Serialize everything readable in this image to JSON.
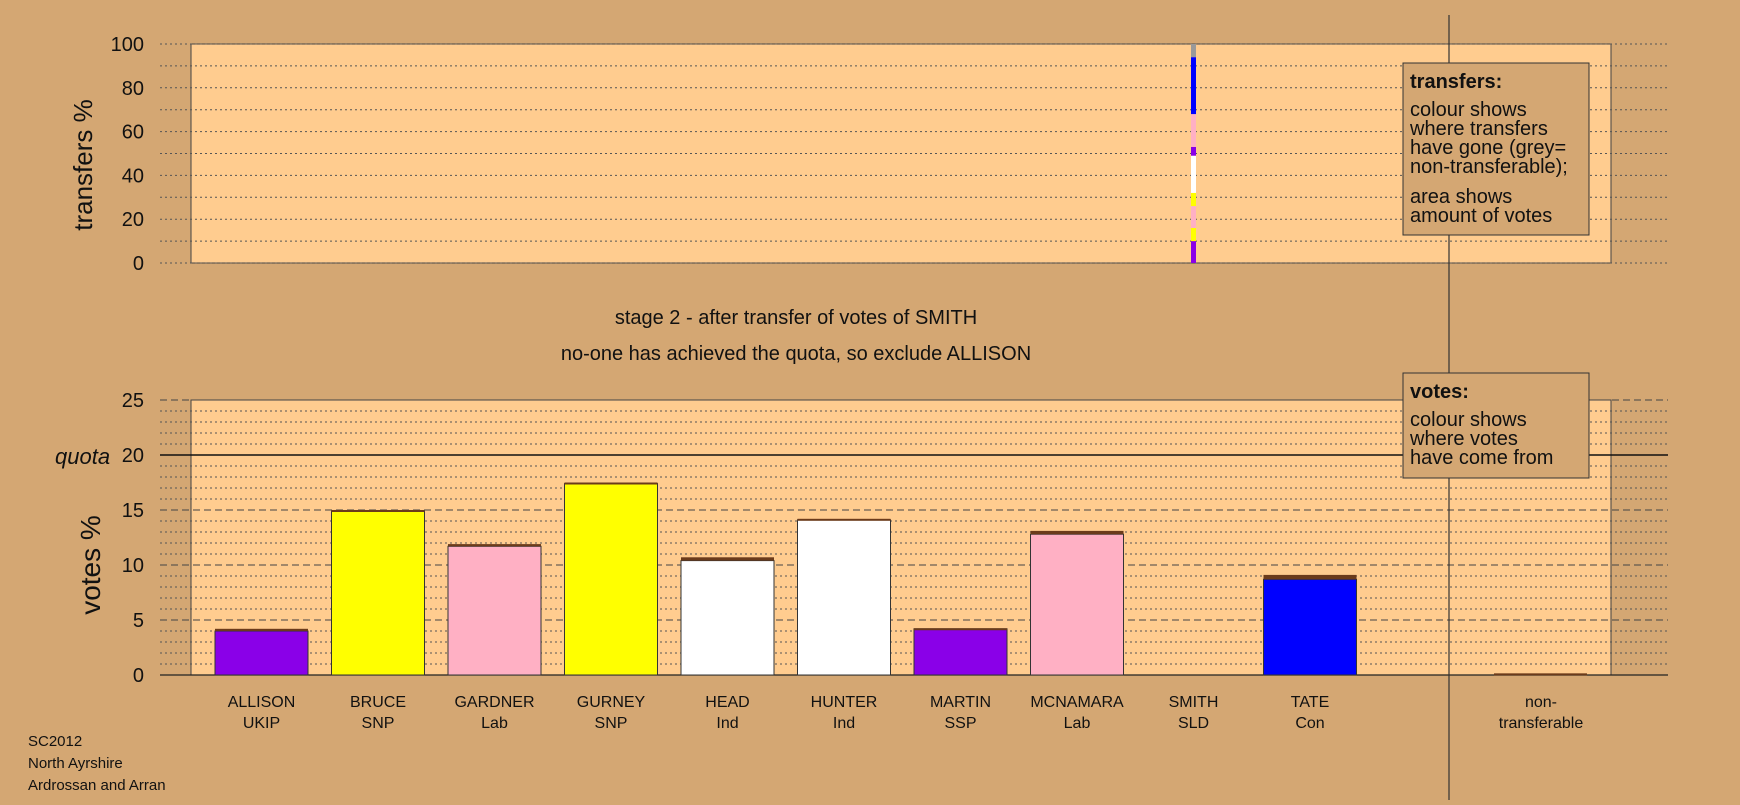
{
  "footer": {
    "line1": "SC2012",
    "line2": "North Ayrshire",
    "line3": "Ardrossan and Arran"
  },
  "stage_text": {
    "line1": "stage 2 - after transfer of votes of SMITH",
    "line2": "no-one has achieved the quota, so exclude ALLISON"
  },
  "transfers_legend": {
    "title": "transfers:",
    "line1": "colour shows",
    "line2": "where transfers",
    "line3": "have gone (grey=",
    "line4": "non-transferable);",
    "line5": "area shows",
    "line6": "amount of votes"
  },
  "votes_legend": {
    "title": "votes:",
    "line1": "colour shows",
    "line2": "where votes",
    "line3": "have come from"
  },
  "colors": {
    "background": "#d4a773",
    "panel": "#ffcc8f",
    "UKIP": "#8a00e8",
    "SNP": "#ffff00",
    "Lab": "#ffb0c4",
    "Ind": "#ffffff",
    "SSP": "#8a00e8",
    "Con": "#0000ff",
    "SLD": "#ffa500",
    "transfer_increment": "#6b3b1b",
    "non_transferable": "#999999"
  },
  "chart_data": [
    {
      "type": "bar",
      "title": "transfers",
      "ylabel": "transfers %",
      "ylim": [
        0,
        100
      ],
      "yticks": [
        0,
        20,
        40,
        60,
        80,
        100
      ],
      "transfer_from": "SMITH",
      "segments": [
        {
          "to": "ALLISON",
          "party": "UKIP",
          "percent": 10
        },
        {
          "to": "BRUCE",
          "party": "SNP",
          "percent": 6
        },
        {
          "to": "GARDNER",
          "party": "Lab",
          "percent": 10
        },
        {
          "to": "GURNEY",
          "party": "SNP",
          "percent": 6
        },
        {
          "to": "HEAD",
          "party": "Ind",
          "percent": 17
        },
        {
          "to": "MARTIN",
          "party": "SSP",
          "percent": 4
        },
        {
          "to": "MCNAMARA",
          "party": "Lab",
          "percent": 15
        },
        {
          "to": "TATE",
          "party": "Con",
          "percent": 26
        },
        {
          "to": "non-transferable",
          "party": "none",
          "percent": 6
        }
      ]
    },
    {
      "type": "bar",
      "title": "votes",
      "ylabel": "votes %",
      "ylim": [
        0,
        25
      ],
      "yticks": [
        0,
        5,
        10,
        15,
        20,
        25
      ],
      "quota_label": "quota",
      "quota": 20,
      "categories": [
        {
          "name": "ALLISON",
          "party": "UKIP",
          "value": 4.0,
          "transfer": 0.2
        },
        {
          "name": "BRUCE",
          "party": "SNP",
          "value": 14.9,
          "transfer": 0.1
        },
        {
          "name": "GARDNER",
          "party": "Lab",
          "value": 11.7,
          "transfer": 0.2
        },
        {
          "name": "GURNEY",
          "party": "SNP",
          "value": 17.4,
          "transfer": 0.1
        },
        {
          "name": "HEAD",
          "party": "Ind",
          "value": 10.4,
          "transfer": 0.3
        },
        {
          "name": "HUNTER",
          "party": "Ind",
          "value": 14.1,
          "transfer": 0.1
        },
        {
          "name": "MARTIN",
          "party": "SSP",
          "value": 4.2,
          "transfer": 0.05
        },
        {
          "name": "MCNAMARA",
          "party": "Lab",
          "value": 12.8,
          "transfer": 0.3
        },
        {
          "name": "SMITH",
          "party": "SLD",
          "value": 0,
          "transfer": 0
        },
        {
          "name": "TATE",
          "party": "Con",
          "value": 8.7,
          "transfer": 0.4
        }
      ],
      "non_transferable": {
        "label_line1": "non-",
        "label_line2": "transferable",
        "value": 0.15
      }
    }
  ]
}
